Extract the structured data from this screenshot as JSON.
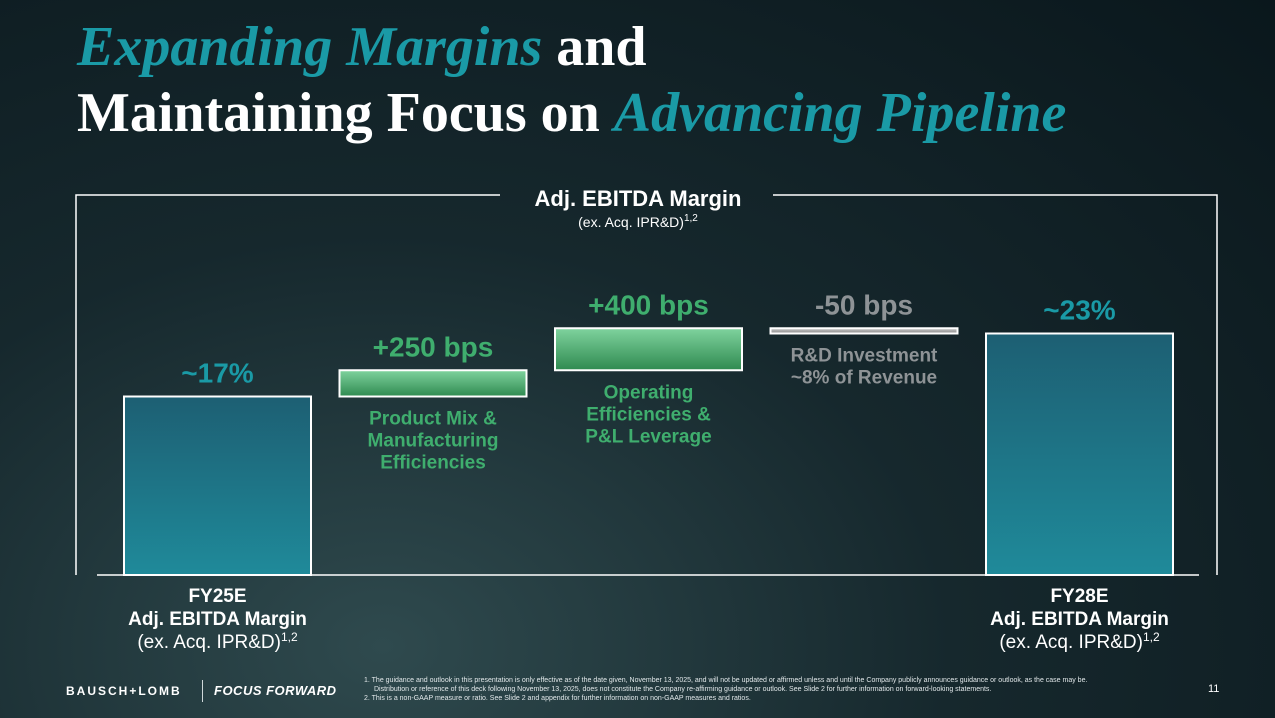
{
  "title": {
    "line1_accent": "Expanding Margins",
    "line1_plain": " and",
    "line2_plain": "Maintaining Focus on ",
    "line2_accent": "Advancing Pipeline"
  },
  "colors": {
    "title_accent": "#1a9aa6",
    "bar_teal": "#1f7f95",
    "bar_green": "#3d9a62",
    "bar_gray": "#9a9a9a",
    "label_green": "#3fae6e",
    "label_gray": "#8e9396"
  },
  "chart_data": {
    "type": "bar",
    "subtype": "waterfall",
    "title": "Adj. EBITDA Margin",
    "subtitle": "(ex. Acq. IPR&D)",
    "subtitle_sup": "1,2",
    "unit": "%",
    "categories": [
      "FY25E",
      "Product Mix & Manufacturing Efficiencies",
      "Operating Efficiencies & P&L Leverage",
      "R&D Investment ~8% of Revenue",
      "FY28E"
    ],
    "steps": [
      {
        "kind": "total",
        "value": 17,
        "start": 0,
        "end": 17,
        "label": "~17%",
        "color": "teal",
        "axis_label": [
          "FY25E",
          "Adj. EBITDA Margin",
          "(ex. Acq. IPR&D)"
        ],
        "axis_sup": "1,2"
      },
      {
        "kind": "delta",
        "value_bps": 250,
        "start": 17,
        "end": 19.5,
        "label": "+250 bps",
        "color": "green",
        "desc": [
          "Product Mix &",
          "Manufacturing",
          "Efficiencies"
        ]
      },
      {
        "kind": "delta",
        "value_bps": 400,
        "start": 19.5,
        "end": 23.5,
        "label": "+400 bps",
        "color": "green",
        "desc": [
          "Operating",
          "Efficiencies &",
          "P&L Leverage"
        ]
      },
      {
        "kind": "delta",
        "value_bps": -50,
        "start": 23.5,
        "end": 23,
        "label": "-50 bps",
        "color": "gray",
        "desc": [
          "R&D Investment",
          "~8% of Revenue"
        ]
      },
      {
        "kind": "total",
        "value": 23,
        "start": 0,
        "end": 23,
        "label": "~23%",
        "color": "teal",
        "axis_label": [
          "FY28E",
          "Adj. EBITDA Margin",
          "(ex. Acq. IPR&D)"
        ],
        "axis_sup": "1,2"
      }
    ]
  },
  "footer": {
    "logo": "BAUSCH+LOMB",
    "tagline": "FOCUS FORWARD",
    "footnotes": [
      "1. The guidance and outlook in this presentation is only effective as of the date given, November 13, 2025, and will not be updated or affirmed unless and until the Company publicly announces guidance or outlook, as the case may be. Distribution or reference of this deck following November 13, 2025, does not constitute the Company re-affirming guidance or outlook. See Slide 2 for further information on forward-looking statements.",
      "2. This is a non-GAAP measure or ratio. See Slide 2 and appendix for further information on non-GAAP measures and ratios."
    ],
    "page_number": "11"
  }
}
